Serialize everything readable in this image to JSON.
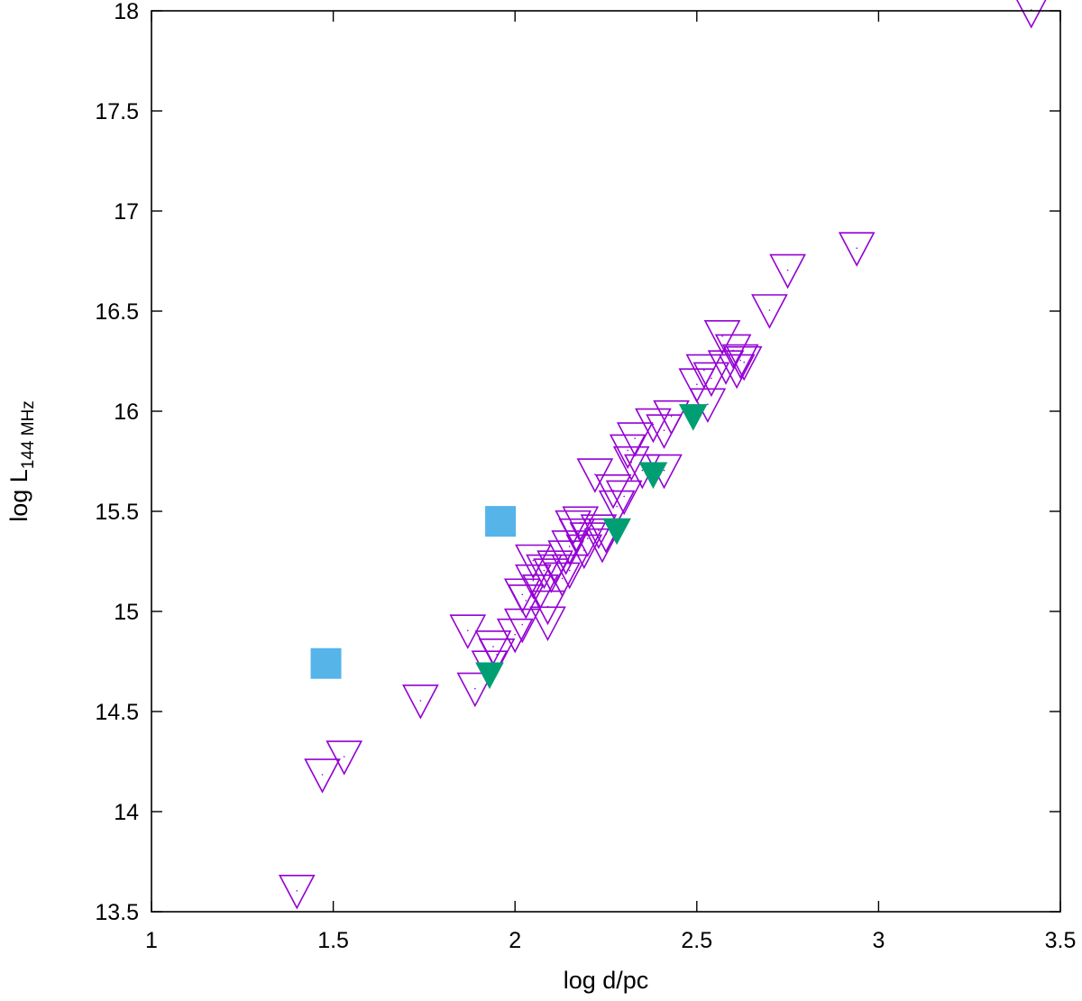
{
  "chart_data": {
    "type": "scatter",
    "title": "",
    "xlabel": "log d/pc",
    "ylabel": {
      "main": "log L",
      "subscript": "144 MHz"
    },
    "xlim": [
      1,
      3.5
    ],
    "ylim": [
      13.5,
      18
    ],
    "x_ticks": [
      1,
      1.5,
      2,
      2.5,
      3,
      3.5
    ],
    "x_tick_labels": [
      "1",
      "1.5",
      "2",
      "2.5",
      "3",
      "3.5"
    ],
    "y_ticks": [
      13.5,
      14,
      14.5,
      15,
      15.5,
      16,
      16.5,
      17,
      17.5,
      18
    ],
    "y_tick_labels": [
      "13.5",
      "14",
      "14.5",
      "15",
      "15.5",
      "16",
      "16.5",
      "17",
      "17.5",
      "18"
    ],
    "grid": false,
    "legend": "none",
    "series": [
      {
        "marker": "open-down-triangle",
        "color": "#9400d3",
        "points": [
          [
            1.4,
            13.6
          ],
          [
            1.47,
            14.18
          ],
          [
            1.53,
            14.27
          ],
          [
            1.74,
            14.55
          ],
          [
            1.87,
            14.9
          ],
          [
            1.89,
            14.61
          ],
          [
            1.93,
            14.72
          ],
          [
            1.94,
            14.82
          ],
          [
            1.95,
            14.78
          ],
          [
            2.0,
            14.88
          ],
          [
            2.02,
            14.93
          ],
          [
            2.02,
            15.08
          ],
          [
            2.03,
            15.05
          ],
          [
            2.05,
            15.15
          ],
          [
            2.05,
            15.25
          ],
          [
            2.07,
            15.1
          ],
          [
            2.08,
            15.2
          ],
          [
            2.09,
            15.02
          ],
          [
            2.09,
            14.94
          ],
          [
            2.1,
            15.18
          ],
          [
            2.11,
            15.22
          ],
          [
            2.13,
            15.16
          ],
          [
            2.14,
            15.27
          ],
          [
            2.15,
            15.2
          ],
          [
            2.15,
            15.32
          ],
          [
            2.16,
            15.42
          ],
          [
            2.17,
            15.38
          ],
          [
            2.18,
            15.44
          ],
          [
            2.19,
            15.3
          ],
          [
            2.2,
            15.36
          ],
          [
            2.22,
            15.68
          ],
          [
            2.23,
            15.4
          ],
          [
            2.24,
            15.33
          ],
          [
            2.25,
            15.38
          ],
          [
            2.27,
            15.6
          ],
          [
            2.28,
            15.52
          ],
          [
            2.3,
            15.57
          ],
          [
            2.31,
            15.8
          ],
          [
            2.32,
            15.74
          ],
          [
            2.33,
            15.86
          ],
          [
            2.35,
            15.7
          ],
          [
            2.38,
            15.93
          ],
          [
            2.41,
            15.7
          ],
          [
            2.41,
            15.9
          ],
          [
            2.43,
            15.97
          ],
          [
            2.5,
            16.13
          ],
          [
            2.52,
            16.2
          ],
          [
            2.53,
            16.03
          ],
          [
            2.54,
            16.16
          ],
          [
            2.57,
            16.37
          ],
          [
            2.58,
            16.22
          ],
          [
            2.6,
            16.3
          ],
          [
            2.61,
            16.2
          ],
          [
            2.62,
            16.25
          ],
          [
            2.63,
            16.24
          ],
          [
            2.7,
            16.5
          ],
          [
            2.75,
            16.7
          ],
          [
            2.94,
            16.81
          ],
          [
            3.42,
            18.0
          ]
        ]
      },
      {
        "marker": "filled-down-triangle",
        "color": "#009e73",
        "points": [
          [
            1.93,
            14.68
          ],
          [
            2.28,
            15.4
          ],
          [
            2.38,
            15.68
          ],
          [
            2.49,
            15.97
          ]
        ]
      },
      {
        "marker": "filled-square",
        "color": "#56b4e9",
        "points": [
          [
            1.48,
            14.74
          ],
          [
            1.96,
            15.45
          ]
        ]
      }
    ]
  }
}
